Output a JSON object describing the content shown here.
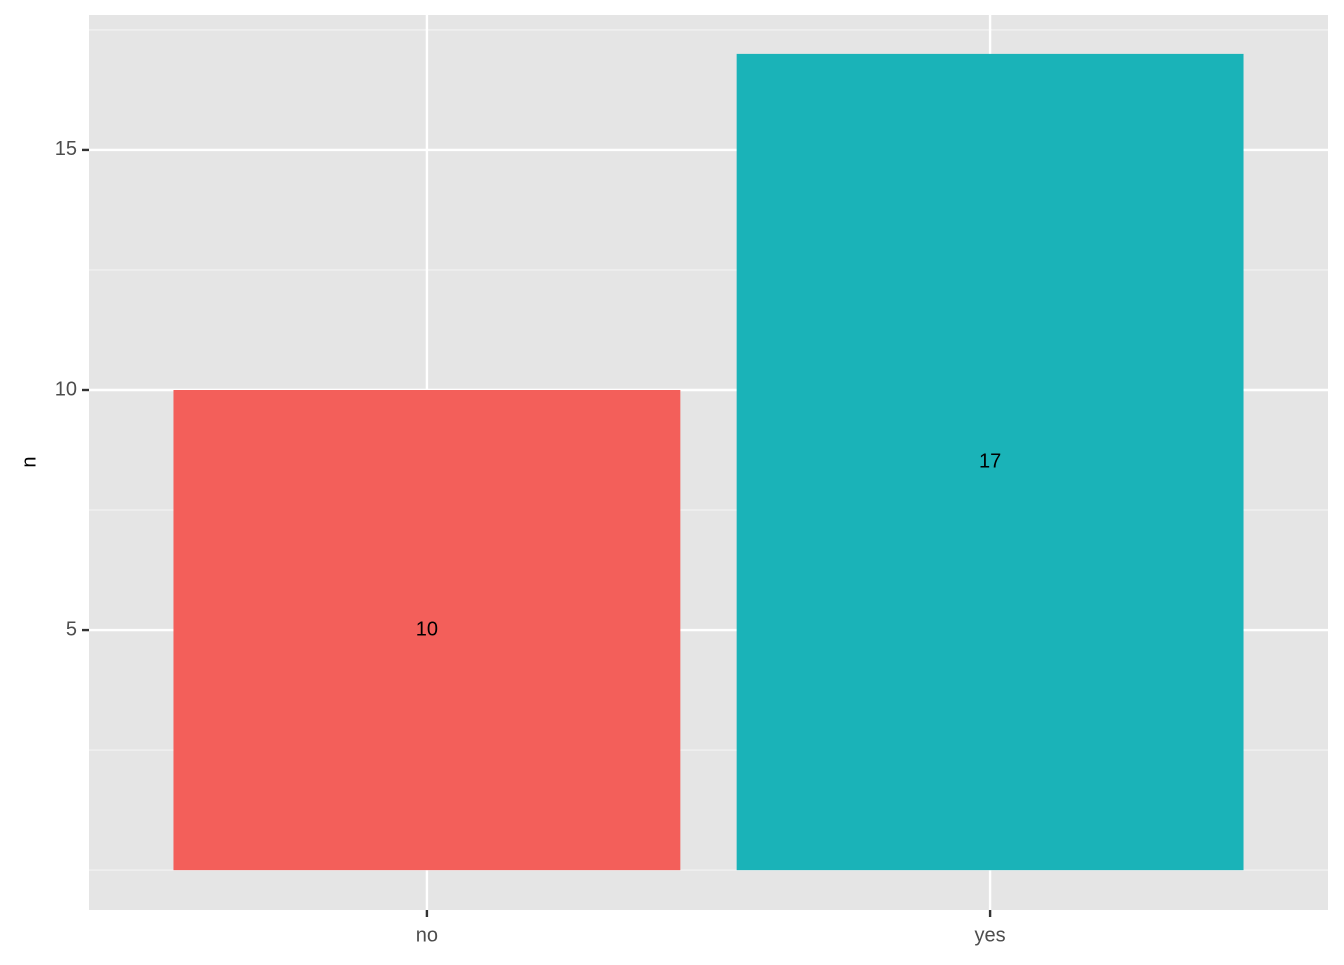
{
  "chart_data": {
    "type": "bar",
    "y_label": "n",
    "categories": [
      "no",
      "yes"
    ],
    "values": [
      10,
      17
    ],
    "colors": [
      "#f35f5a",
      "#1ab3b8"
    ],
    "ylim": [
      -0.83,
      17.81
    ],
    "yticks": [
      5,
      10,
      15
    ],
    "yminorticks": [
      0,
      2.5,
      7.5,
      12.5,
      17.5
    ],
    "grid": true
  }
}
